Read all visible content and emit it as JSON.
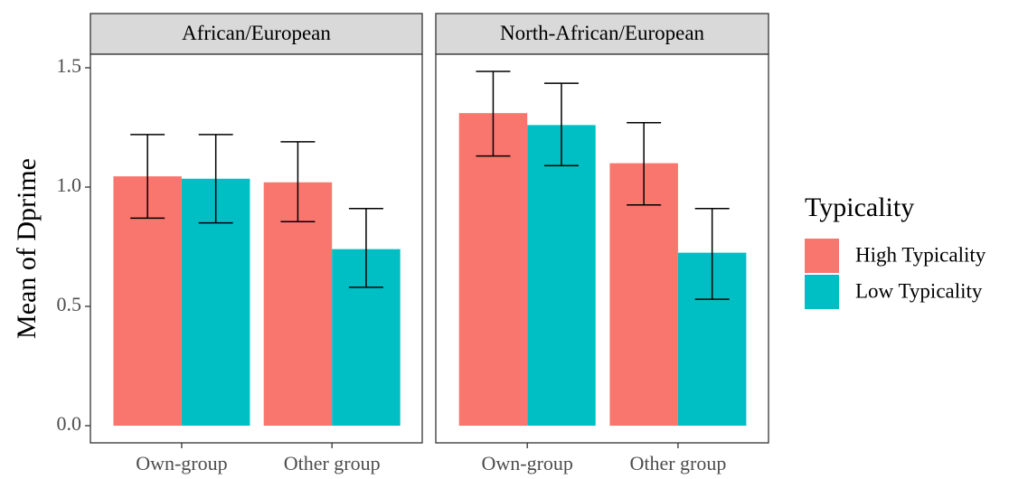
{
  "chart_data": {
    "type": "bar",
    "ylabel": "Mean of Dprime",
    "xlabel": "",
    "ylim": [
      0,
      1.6
    ],
    "yticks": [
      0.0,
      0.5,
      1.0,
      1.5
    ],
    "ytick_labels": [
      "0.0",
      "0.5",
      "1.0",
      "1.5"
    ],
    "grid": false,
    "legend": {
      "title": "Typicality",
      "position": "right",
      "entries": [
        "High Typicality",
        "Low Typicality"
      ]
    },
    "colors": {
      "High Typicality": "#F8766D",
      "Low Typicality": "#00BFC4",
      "strip_fill": "#D9D9D9",
      "panel_border": "#333333",
      "error_bar": "#000000"
    },
    "categories": [
      "Own-group",
      "Other group"
    ],
    "panels": [
      {
        "label": "African/European",
        "series": [
          {
            "name": "High Typicality",
            "values": [
              1.045,
              1.02
            ],
            "err_low": [
              0.87,
              0.855
            ],
            "err_high": [
              1.22,
              1.19
            ]
          },
          {
            "name": "Low Typicality",
            "values": [
              1.035,
              0.74
            ],
            "err_low": [
              0.85,
              0.58
            ],
            "err_high": [
              1.22,
              0.91
            ]
          }
        ]
      },
      {
        "label": "North-African/European",
        "series": [
          {
            "name": "High Typicality",
            "values": [
              1.31,
              1.1
            ],
            "err_low": [
              1.13,
              0.925
            ],
            "err_high": [
              1.485,
              1.27
            ]
          },
          {
            "name": "Low Typicality",
            "values": [
              1.26,
              0.725
            ],
            "err_low": [
              1.09,
              0.53
            ],
            "err_high": [
              1.435,
              0.91
            ]
          }
        ]
      }
    ]
  }
}
